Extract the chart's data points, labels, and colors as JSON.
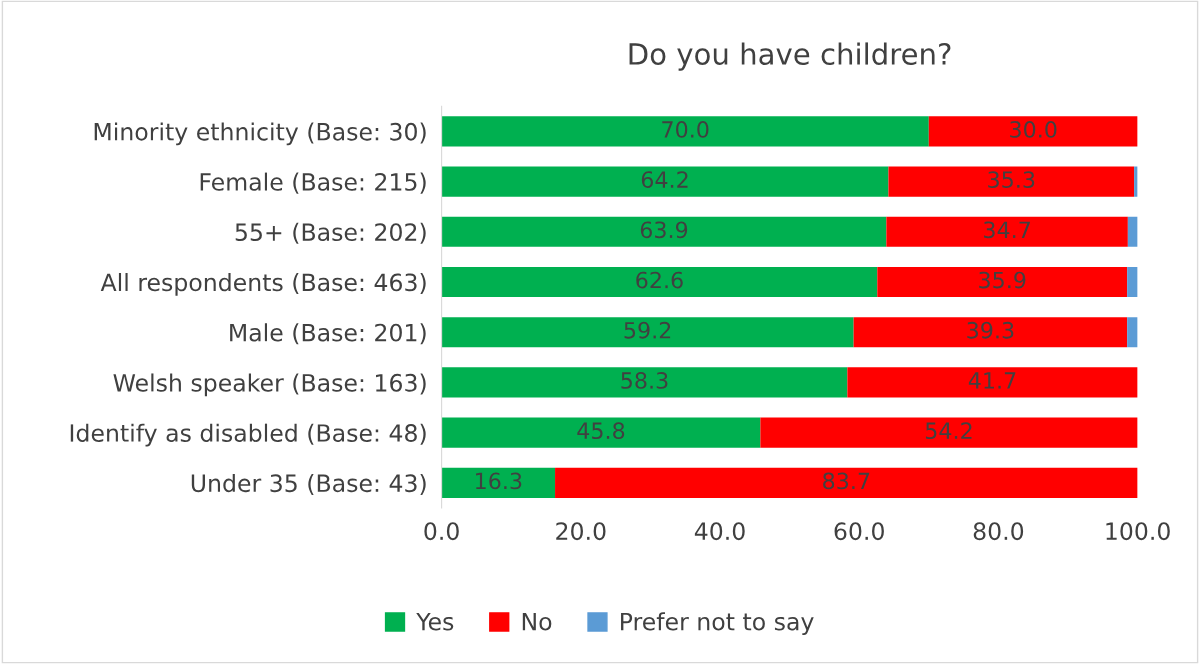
{
  "chart_data": {
    "type": "bar",
    "orientation": "horizontal",
    "stacked": true,
    "title": "Do you have children?",
    "categories": [
      "Minority ethnicity (Base: 30)",
      "Female (Base: 215)",
      "55+ (Base: 202)",
      "All respondents (Base: 463)",
      "Male (Base: 201)",
      "Welsh speaker (Base: 163)",
      "Identify as disabled (Base: 48)",
      "Under 35 (Base: 43)"
    ],
    "series": [
      {
        "name": "Yes",
        "color": "#00b050",
        "values": [
          70.0,
          64.2,
          63.9,
          62.6,
          59.2,
          58.3,
          45.8,
          16.3
        ],
        "value_labels": [
          "70.0",
          "64.2",
          "63.9",
          "62.6",
          "59.2",
          "58.3",
          "45.8",
          "16.3"
        ]
      },
      {
        "name": "No",
        "color": "#ff0000",
        "values": [
          30.0,
          35.3,
          34.7,
          35.9,
          39.3,
          41.7,
          54.2,
          83.7
        ],
        "value_labels": [
          "30.0",
          "35.3",
          "34.7",
          "35.9",
          "39.3",
          "41.7",
          "54.2",
          "83.7"
        ]
      },
      {
        "name": "Prefer not to say",
        "color": "#5b9bd5",
        "values": [
          0,
          0.5,
          1.4,
          1.5,
          1.5,
          0,
          0,
          0
        ],
        "value_labels": [
          null,
          null,
          null,
          null,
          null,
          null,
          null,
          null
        ]
      }
    ],
    "xlim": [
      0,
      100
    ],
    "xticks": [
      {
        "value": 0,
        "label": "0.0"
      },
      {
        "value": 20,
        "label": "20.0"
      },
      {
        "value": 40,
        "label": "40.0"
      },
      {
        "value": 60,
        "label": "60.0"
      },
      {
        "value": 80,
        "label": "80.0"
      },
      {
        "value": 100,
        "label": "100.0"
      }
    ],
    "grid": false,
    "legend": "bottom"
  }
}
